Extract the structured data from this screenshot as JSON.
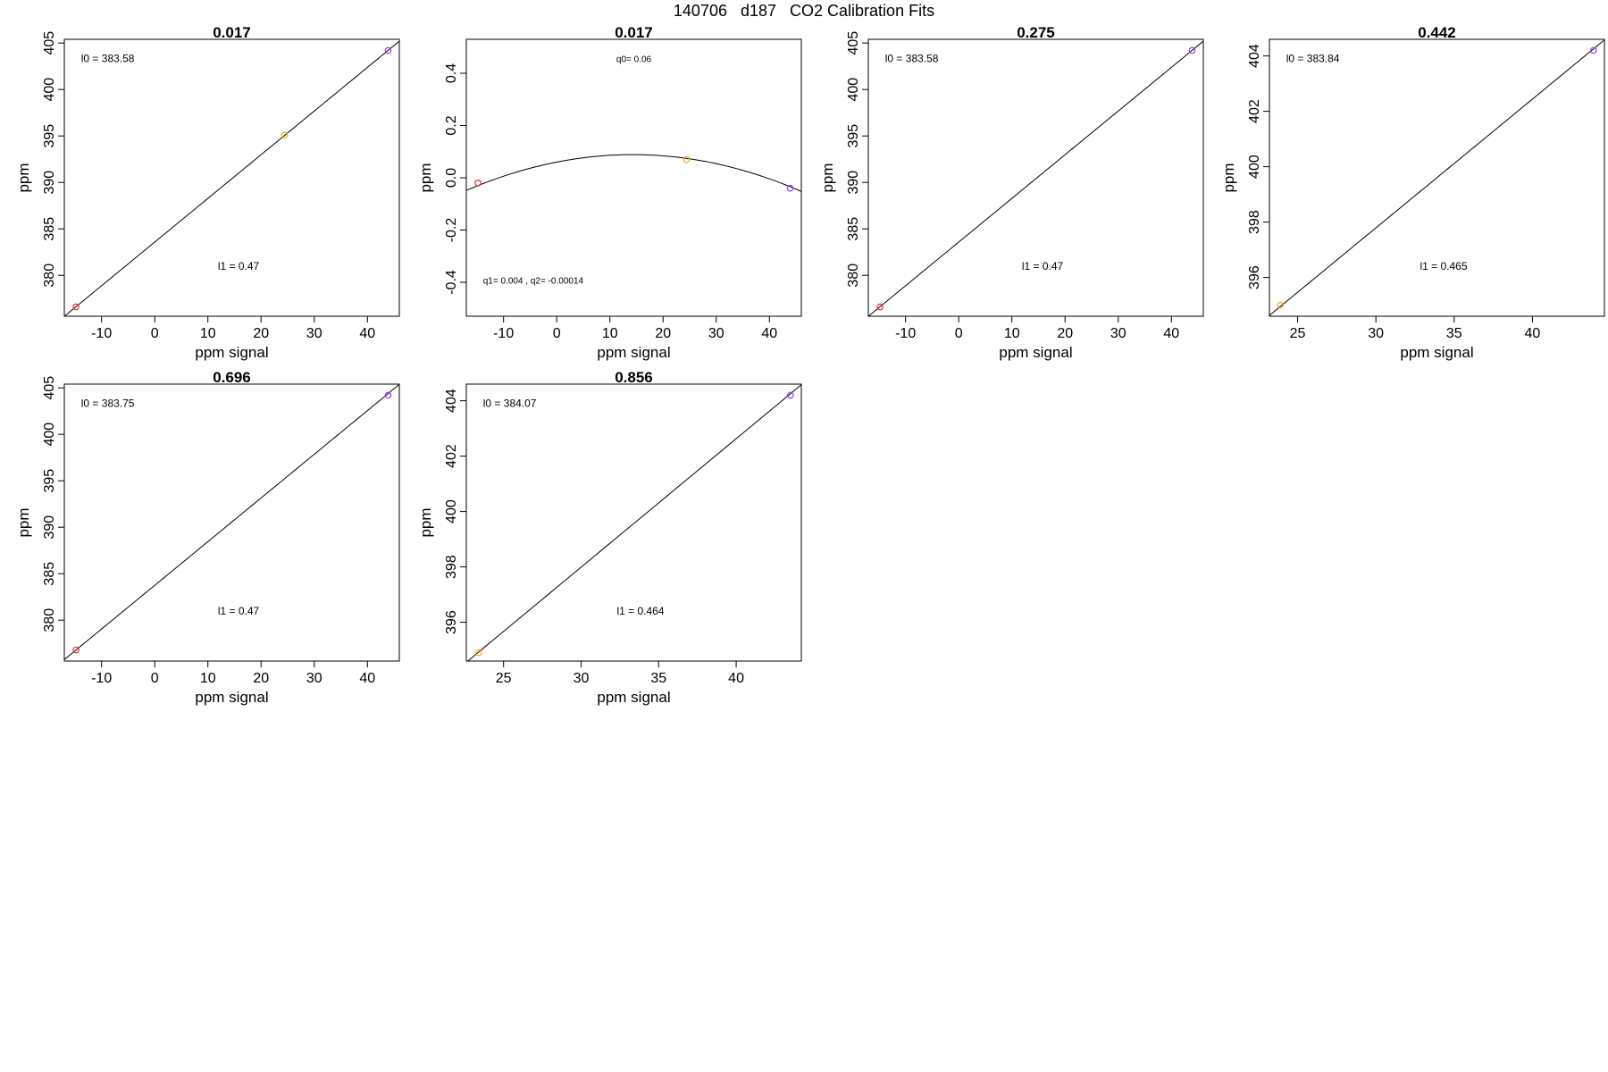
{
  "page": {
    "title": "140706   d187   CO2 Calibration Fits"
  },
  "chart_data": [
    {
      "type": "line",
      "title": "0.017",
      "xlabel": "ppm signal",
      "ylabel": "ppm",
      "xlim": [
        -17,
        46
      ],
      "ylim": [
        375.6,
        405.4
      ],
      "xticks": [
        "-10",
        "0",
        "10",
        "20",
        "30",
        "40"
      ],
      "yticks": [
        "380",
        "385",
        "390",
        "395",
        "400",
        "405"
      ],
      "grid": false,
      "fit": {
        "kind": "linear",
        "l0": 383.58,
        "l1": 0.47
      },
      "points": [
        {
          "x": -14.8,
          "y": 376.6,
          "color": "#e0303a"
        },
        {
          "x": 24.4,
          "y": 395.1,
          "color": "#f5a623"
        },
        {
          "x": 43.9,
          "y": 404.2,
          "color": "#8a3fe0"
        }
      ],
      "annotations": [
        {
          "id": "l0",
          "text": "l0 =  383.58"
        },
        {
          "id": "l1",
          "text": "l1 =  0.47"
        }
      ]
    },
    {
      "type": "line",
      "title": "0.017",
      "xlabel": "ppm signal",
      "ylabel": "ppm",
      "xlim": [
        -17,
        46
      ],
      "ylim": [
        -0.53,
        0.53
      ],
      "xticks": [
        "-10",
        "0",
        "10",
        "20",
        "30",
        "40"
      ],
      "yticks": [
        "-0.4",
        "-0.2",
        "0.0",
        "0.2",
        "0.4"
      ],
      "grid": false,
      "fit": {
        "kind": "quadratic",
        "q0": 0.06,
        "q1": 0.004,
        "q2": -0.00014
      },
      "points": [
        {
          "x": -14.8,
          "y": -0.02,
          "color": "#e0303a"
        },
        {
          "x": 24.4,
          "y": 0.07,
          "color": "#f5a623"
        },
        {
          "x": 43.9,
          "y": -0.04,
          "color": "#8a3fe0"
        }
      ],
      "annotations": [
        {
          "id": "q0",
          "text": "q0= 0.06"
        },
        {
          "id": "q12",
          "text": "q1= 0.004 , q2= -0.00014"
        }
      ]
    },
    {
      "type": "line",
      "title": "0.275",
      "xlabel": "ppm signal",
      "ylabel": "ppm",
      "xlim": [
        -17,
        46
      ],
      "ylim": [
        375.6,
        405.4
      ],
      "xticks": [
        "-10",
        "0",
        "10",
        "20",
        "30",
        "40"
      ],
      "yticks": [
        "380",
        "385",
        "390",
        "395",
        "400",
        "405"
      ],
      "grid": false,
      "fit": {
        "kind": "linear",
        "l0": 383.58,
        "l1": 0.47
      },
      "points": [
        {
          "x": -14.8,
          "y": 376.6,
          "color": "#e0303a"
        },
        {
          "x": 43.9,
          "y": 404.2,
          "color": "#8a3fe0"
        }
      ],
      "annotations": [
        {
          "id": "l0",
          "text": "l0 =  383.58"
        },
        {
          "id": "l1",
          "text": "l1 =  0.47"
        }
      ]
    },
    {
      "type": "line",
      "title": "0.442",
      "xlabel": "ppm signal",
      "ylabel": "ppm",
      "xlim": [
        23.2,
        44.6
      ],
      "ylim": [
        394.6,
        404.6
      ],
      "xticks": [
        "25",
        "30",
        "35",
        "40"
      ],
      "yticks": [
        "396",
        "398",
        "400",
        "402",
        "404"
      ],
      "grid": false,
      "fit": {
        "kind": "linear",
        "l0": 383.84,
        "l1": 0.465
      },
      "points": [
        {
          "x": 23.9,
          "y": 395.0,
          "color": "#f5a623"
        },
        {
          "x": 43.9,
          "y": 404.2,
          "color": "#8a3fe0"
        }
      ],
      "annotations": [
        {
          "id": "l0",
          "text": "l0 =  383.84"
        },
        {
          "id": "l1",
          "text": "l1 =  0.465"
        }
      ]
    },
    {
      "type": "line",
      "title": "0.696",
      "xlabel": "ppm signal",
      "ylabel": "ppm",
      "xlim": [
        -17,
        46
      ],
      "ylim": [
        375.6,
        405.4
      ],
      "xticks": [
        "-10",
        "0",
        "10",
        "20",
        "30",
        "40"
      ],
      "yticks": [
        "380",
        "385",
        "390",
        "395",
        "400",
        "405"
      ],
      "grid": false,
      "fit": {
        "kind": "linear",
        "l0": 383.75,
        "l1": 0.47
      },
      "points": [
        {
          "x": -14.8,
          "y": 376.8,
          "color": "#e0303a"
        },
        {
          "x": 43.9,
          "y": 404.2,
          "color": "#8a3fe0"
        }
      ],
      "annotations": [
        {
          "id": "l0",
          "text": "l0 =  383.75"
        },
        {
          "id": "l1",
          "text": "l1 =  0.47"
        }
      ]
    },
    {
      "type": "line",
      "title": "0.856",
      "xlabel": "ppm signal",
      "ylabel": "ppm",
      "xlim": [
        22.6,
        44.2
      ],
      "ylim": [
        394.6,
        404.6
      ],
      "xticks": [
        "25",
        "30",
        "35",
        "40"
      ],
      "yticks": [
        "396",
        "398",
        "400",
        "402",
        "404"
      ],
      "grid": false,
      "fit": {
        "kind": "linear",
        "l0": 384.07,
        "l1": 0.464
      },
      "points": [
        {
          "x": 23.4,
          "y": 394.9,
          "color": "#f5a623"
        },
        {
          "x": 43.5,
          "y": 404.2,
          "color": "#8a3fe0"
        }
      ],
      "annotations": [
        {
          "id": "l0",
          "text": "l0 =  384.07"
        },
        {
          "id": "l1",
          "text": "l1 =  0.464"
        }
      ]
    }
  ]
}
